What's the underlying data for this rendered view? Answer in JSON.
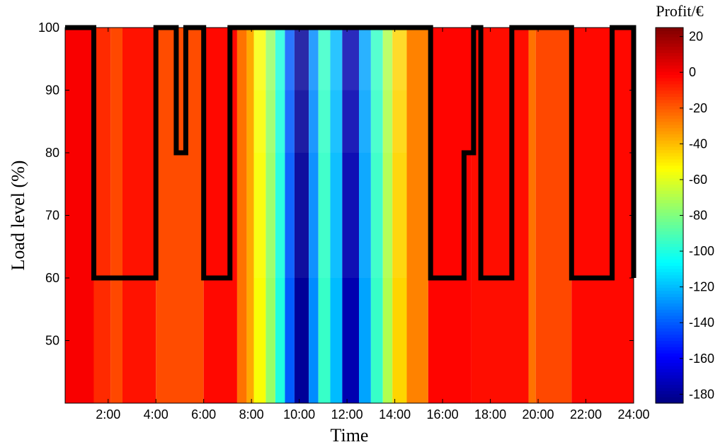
{
  "chart_data": {
    "type": "heatmap",
    "xlabel": "Time",
    "ylabel": "Load level (%)",
    "colorbar_title": "Profit/€",
    "x_range_hours": [
      0.2,
      24
    ],
    "y_range": [
      40,
      100
    ],
    "x_ticks": [
      "2:00",
      "4:00",
      "6:00",
      "8:00",
      "10:00",
      "12:00",
      "14:00",
      "16:00",
      "18:00",
      "20:00",
      "22:00",
      "24:00"
    ],
    "y_ticks": [
      50,
      60,
      70,
      80,
      90,
      100
    ],
    "colorbar_range": [
      -185,
      25
    ],
    "colorbar_ticks": [
      20,
      0,
      -20,
      -40,
      -60,
      -80,
      -100,
      -120,
      -140,
      -160,
      -180
    ],
    "colormap": "jet",
    "profit_columns": [
      {
        "start": 0.2,
        "end": 1.4,
        "value": 0
      },
      {
        "start": 1.4,
        "end": 2.1,
        "value": -10
      },
      {
        "start": 2.1,
        "end": 2.6,
        "value": -16
      },
      {
        "start": 2.6,
        "end": 4.0,
        "value": -5
      },
      {
        "start": 4.0,
        "end": 6.0,
        "value": -17
      },
      {
        "start": 6.0,
        "end": 7.4,
        "value": -3
      },
      {
        "start": 7.4,
        "end": 7.8,
        "value": -25
      },
      {
        "start": 7.8,
        "end": 8.1,
        "value": -36
      },
      {
        "start": 8.1,
        "end": 8.6,
        "value": -55
      },
      {
        "start": 8.6,
        "end": 9.0,
        "value": -75
      },
      {
        "start": 9.0,
        "end": 9.4,
        "value": -100
      },
      {
        "start": 9.4,
        "end": 9.8,
        "value": -140
      },
      {
        "start": 9.8,
        "end": 10.4,
        "value": -180
      },
      {
        "start": 10.4,
        "end": 10.8,
        "value": -130
      },
      {
        "start": 10.8,
        "end": 11.3,
        "value": -95
      },
      {
        "start": 11.3,
        "end": 11.8,
        "value": -120
      },
      {
        "start": 11.8,
        "end": 12.5,
        "value": -175
      },
      {
        "start": 12.5,
        "end": 13.0,
        "value": -125
      },
      {
        "start": 13.0,
        "end": 13.5,
        "value": -95
      },
      {
        "start": 13.5,
        "end": 13.9,
        "value": -70
      },
      {
        "start": 13.9,
        "end": 14.5,
        "value": -45
      },
      {
        "start": 14.5,
        "end": 15.4,
        "value": -28
      },
      {
        "start": 15.4,
        "end": 17.2,
        "value": -2
      },
      {
        "start": 17.2,
        "end": 19.6,
        "value": -4
      },
      {
        "start": 19.6,
        "end": 19.9,
        "value": -25
      },
      {
        "start": 19.9,
        "end": 21.4,
        "value": -16
      },
      {
        "start": 21.4,
        "end": 24.0,
        "value": -3
      }
    ],
    "threshold_line": [
      [
        0.2,
        100
      ],
      [
        1.4,
        100
      ],
      [
        1.4,
        60
      ],
      [
        4.0,
        60
      ],
      [
        4.0,
        100
      ],
      [
        4.85,
        100
      ],
      [
        4.85,
        80
      ],
      [
        5.25,
        80
      ],
      [
        5.25,
        100
      ],
      [
        6.0,
        100
      ],
      [
        6.0,
        60
      ],
      [
        7.1,
        60
      ],
      [
        7.1,
        100
      ],
      [
        15.5,
        100
      ],
      [
        15.5,
        60
      ],
      [
        16.9,
        60
      ],
      [
        16.9,
        80
      ],
      [
        17.3,
        80
      ],
      [
        17.3,
        100
      ],
      [
        17.6,
        100
      ],
      [
        17.6,
        60
      ],
      [
        18.9,
        60
      ],
      [
        18.9,
        100
      ],
      [
        21.4,
        100
      ],
      [
        21.4,
        60
      ],
      [
        23.1,
        60
      ],
      [
        23.1,
        100
      ],
      [
        24.0,
        100
      ],
      [
        24.0,
        60
      ]
    ]
  }
}
